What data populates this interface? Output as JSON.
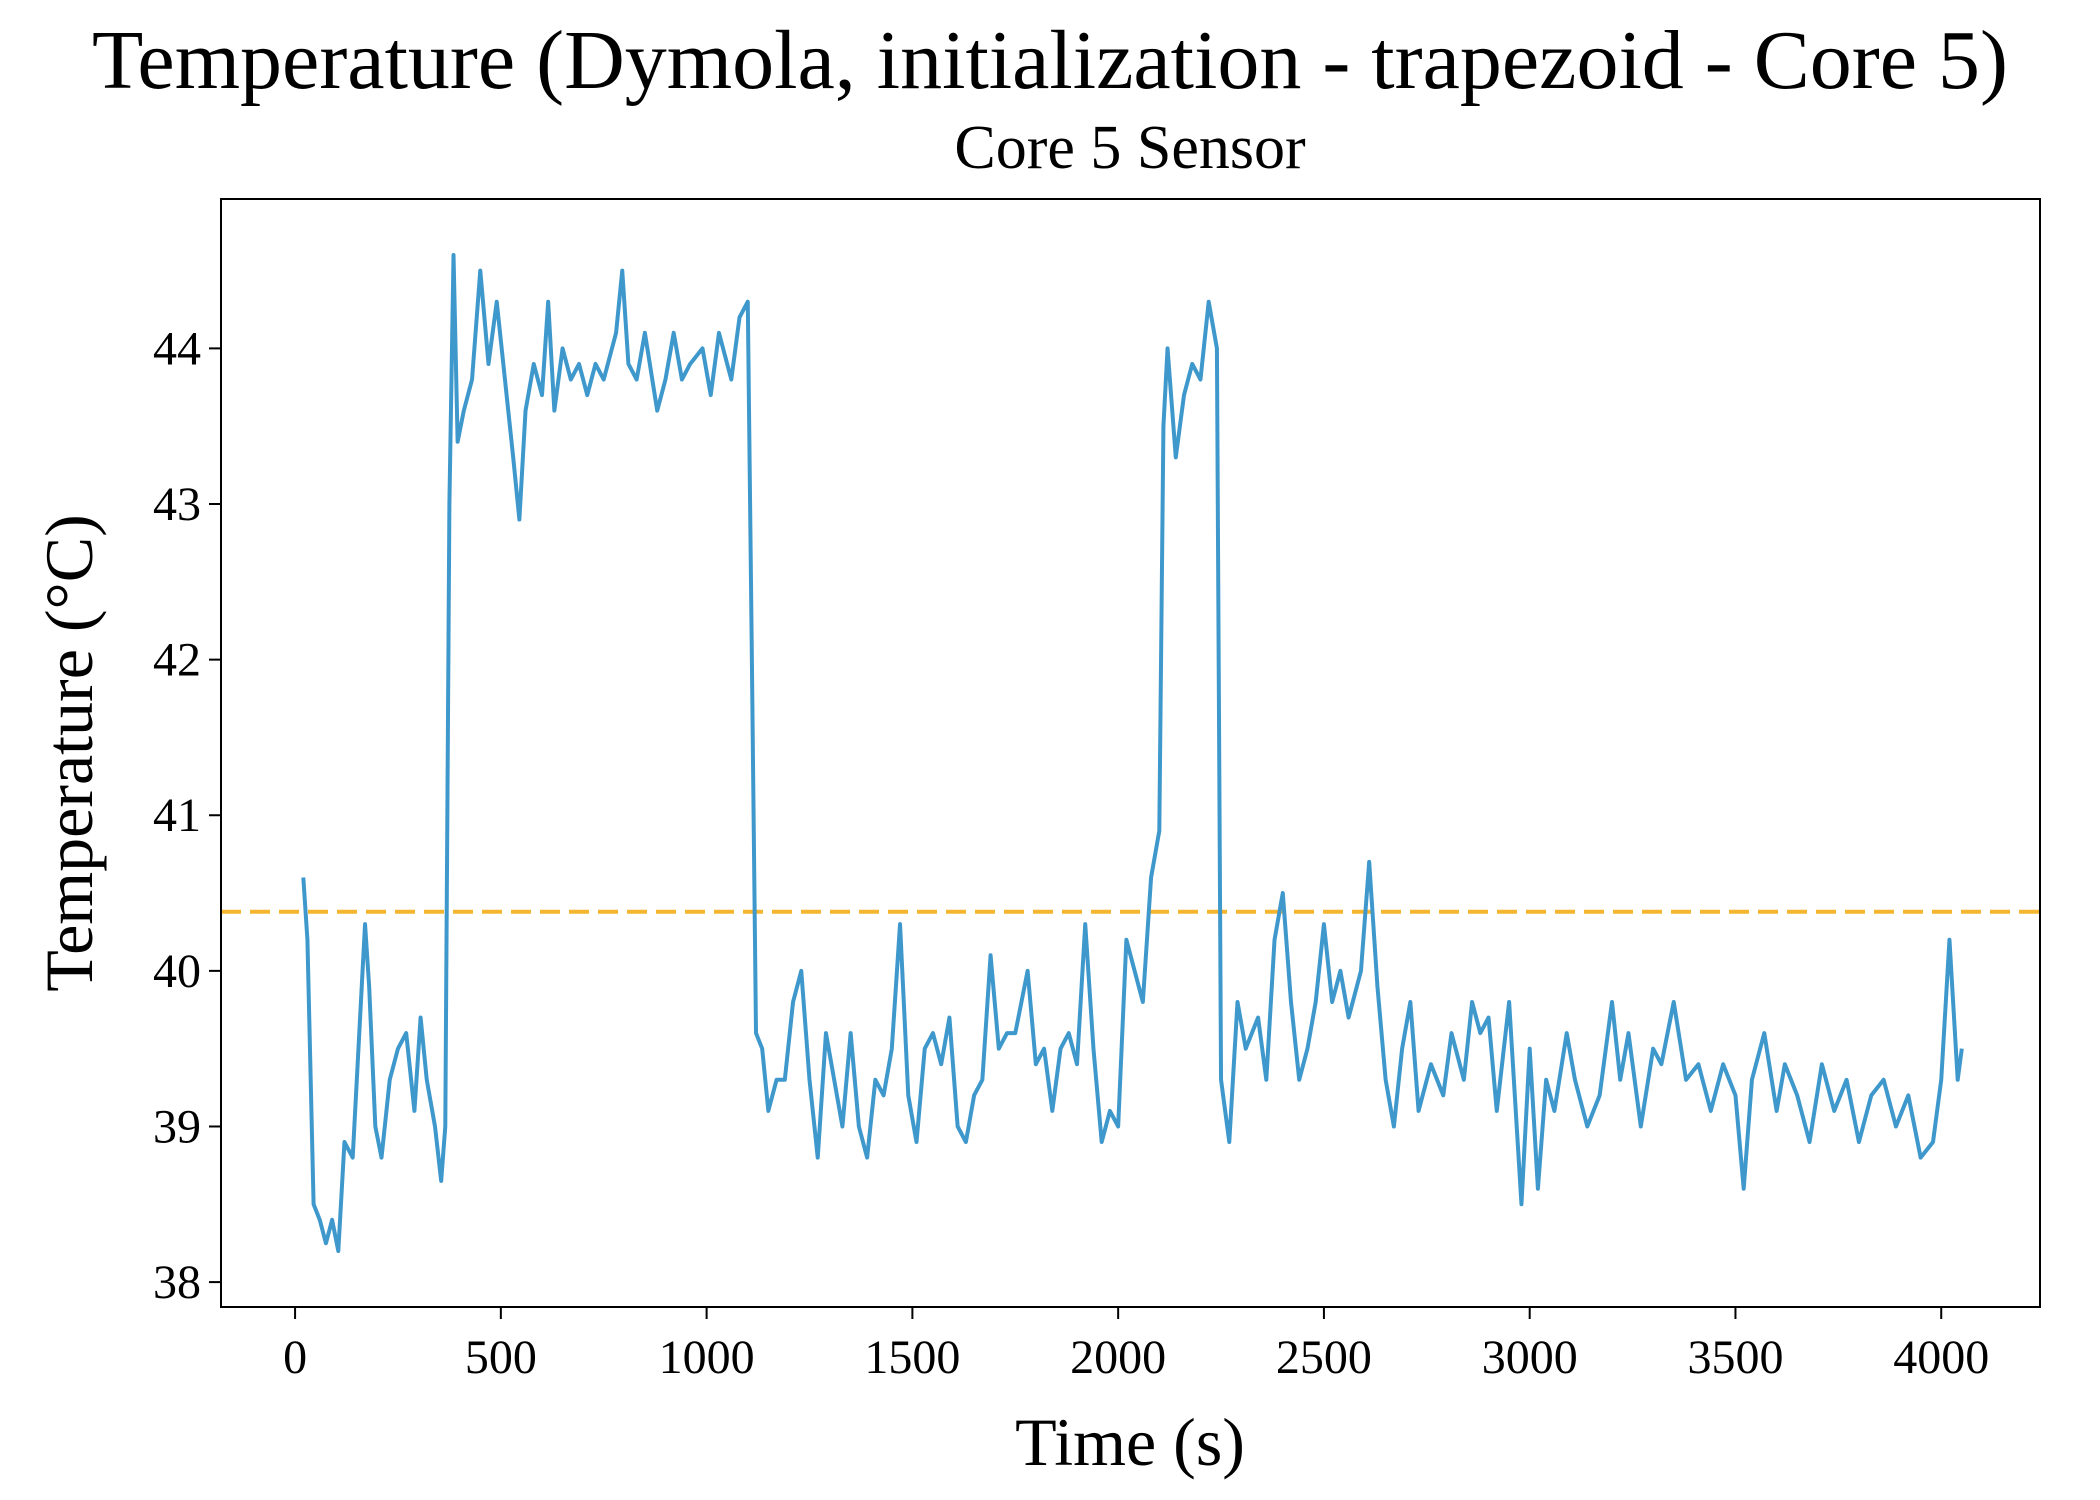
{
  "chart_data": {
    "type": "line",
    "title": "Temperature (Dymola, initialization - trapezoid - Core 5)",
    "subtitle": "Core 5 Sensor",
    "x_label": "Time (s)",
    "y_label": "Temperature (°C)",
    "xlim": [
      -180,
      4240
    ],
    "ylim": [
      37.84,
      44.96
    ],
    "xticks": [
      0,
      500,
      1000,
      1500,
      2000,
      2500,
      3000,
      3500,
      4000
    ],
    "yticks": [
      38,
      39,
      40,
      41,
      42,
      43,
      44
    ],
    "grid": false,
    "reference_line": {
      "value": 40.38,
      "color": "#f5b52e",
      "style": "dashed"
    },
    "x": [
      20,
      30,
      45,
      60,
      75,
      90,
      105,
      120,
      140,
      160,
      170,
      180,
      195,
      210,
      230,
      250,
      270,
      290,
      305,
      320,
      340,
      355,
      365,
      375,
      385,
      395,
      410,
      430,
      450,
      470,
      490,
      510,
      530,
      545,
      560,
      580,
      600,
      615,
      630,
      650,
      670,
      690,
      710,
      730,
      750,
      780,
      795,
      810,
      830,
      850,
      880,
      900,
      920,
      940,
      960,
      990,
      1010,
      1030,
      1060,
      1080,
      1100,
      1110,
      1120,
      1135,
      1150,
      1170,
      1190,
      1210,
      1230,
      1250,
      1270,
      1290,
      1310,
      1330,
      1350,
      1370,
      1390,
      1410,
      1430,
      1450,
      1470,
      1490,
      1510,
      1530,
      1550,
      1570,
      1590,
      1610,
      1630,
      1650,
      1670,
      1690,
      1710,
      1730,
      1750,
      1780,
      1800,
      1820,
      1840,
      1860,
      1880,
      1900,
      1920,
      1940,
      1960,
      1980,
      2000,
      2020,
      2040,
      2060,
      2080,
      2100,
      2110,
      2120,
      2140,
      2160,
      2180,
      2200,
      2220,
      2240,
      2250,
      2270,
      2290,
      2310,
      2340,
      2360,
      2380,
      2400,
      2420,
      2440,
      2460,
      2480,
      2500,
      2520,
      2540,
      2560,
      2590,
      2610,
      2630,
      2650,
      2670,
      2690,
      2710,
      2730,
      2760,
      2790,
      2810,
      2840,
      2860,
      2880,
      2900,
      2920,
      2950,
      2980,
      3000,
      3020,
      3040,
      3060,
      3090,
      3110,
      3140,
      3170,
      3200,
      3220,
      3240,
      3270,
      3300,
      3320,
      3350,
      3380,
      3410,
      3440,
      3470,
      3500,
      3520,
      3540,
      3570,
      3600,
      3620,
      3650,
      3680,
      3710,
      3740,
      3770,
      3800,
      3830,
      3860,
      3890,
      3920,
      3950,
      3980,
      4000,
      4020,
      4040,
      4050
    ],
    "series": [
      {
        "name": "Core 5",
        "color": "#3f98cc",
        "values": [
          40.6,
          40.2,
          38.5,
          38.4,
          38.25,
          38.4,
          38.2,
          38.9,
          38.8,
          39.8,
          40.3,
          39.9,
          39.0,
          38.8,
          39.3,
          39.5,
          39.6,
          39.1,
          39.7,
          39.3,
          39.0,
          38.65,
          39.0,
          43.0,
          44.6,
          43.4,
          43.6,
          43.8,
          44.5,
          43.9,
          44.3,
          43.8,
          43.3,
          42.9,
          43.6,
          43.9,
          43.7,
          44.3,
          43.6,
          44.0,
          43.8,
          43.9,
          43.7,
          43.9,
          43.8,
          44.1,
          44.5,
          43.9,
          43.8,
          44.1,
          43.6,
          43.8,
          44.1,
          43.8,
          43.9,
          44.0,
          43.7,
          44.1,
          43.8,
          44.2,
          44.3,
          42.0,
          39.6,
          39.5,
          39.1,
          39.3,
          39.3,
          39.8,
          40.0,
          39.3,
          38.8,
          39.6,
          39.3,
          39.0,
          39.6,
          39.0,
          38.8,
          39.3,
          39.2,
          39.5,
          40.3,
          39.2,
          38.9,
          39.5,
          39.6,
          39.4,
          39.7,
          39.0,
          38.9,
          39.2,
          39.3,
          40.1,
          39.5,
          39.6,
          39.6,
          40.0,
          39.4,
          39.5,
          39.1,
          39.5,
          39.6,
          39.4,
          40.3,
          39.5,
          38.9,
          39.1,
          39.0,
          40.2,
          40.0,
          39.8,
          40.6,
          40.9,
          43.5,
          44.0,
          43.3,
          43.7,
          43.9,
          43.8,
          44.3,
          44.0,
          39.3,
          38.9,
          39.8,
          39.5,
          39.7,
          39.3,
          40.2,
          40.5,
          39.8,
          39.3,
          39.5,
          39.8,
          40.3,
          39.8,
          40.0,
          39.7,
          40.0,
          40.7,
          39.9,
          39.3,
          39.0,
          39.5,
          39.8,
          39.1,
          39.4,
          39.2,
          39.6,
          39.3,
          39.8,
          39.6,
          39.7,
          39.1,
          39.8,
          38.5,
          39.5,
          38.6,
          39.3,
          39.1,
          39.6,
          39.3,
          39.0,
          39.2,
          39.8,
          39.3,
          39.6,
          39.0,
          39.5,
          39.4,
          39.8,
          39.3,
          39.4,
          39.1,
          39.4,
          39.2,
          38.6,
          39.3,
          39.6,
          39.1,
          39.4,
          39.2,
          38.9,
          39.4,
          39.1,
          39.3,
          38.9,
          39.2,
          39.3,
          39.0,
          39.2,
          38.8,
          38.9,
          39.3,
          40.2,
          39.3,
          39.5
        ]
      }
    ]
  }
}
